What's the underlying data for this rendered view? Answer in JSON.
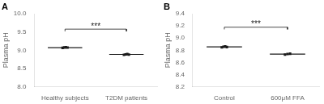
{
  "chart_data": [
    {
      "type": "scatter",
      "title": "A",
      "ylabel": "Plasma pH",
      "categories": [
        "Healthy subjects",
        "T2DM patients"
      ],
      "values": [
        [
          9.065,
          9.075,
          9.082,
          9.072
        ],
        [
          8.875,
          8.885,
          8.892,
          8.88
        ]
      ],
      "means": [
        9.07,
        8.885
      ],
      "color": "#1a1a1a",
      "marker": "square",
      "grid": false,
      "ylim": [
        8.0,
        10.0
      ],
      "yticks": [
        {
          "value": 8.0,
          "label": "8.0"
        },
        8.5,
        {
          "value": 9.0,
          "label": "9.0"
        },
        9.5,
        {
          "value": 10.0,
          "label": "10.0"
        }
      ],
      "annotations": [
        {
          "text": "***",
          "y": 9.58,
          "from": "Healthy subjects",
          "to": "T2DM patients"
        }
      ]
    },
    {
      "type": "scatter",
      "title": "B",
      "ylabel": "Plasma pH",
      "categories": [
        "Control",
        "600μM FFA"
      ],
      "values": [
        [
          8.848,
          8.858,
          8.862,
          8.852
        ],
        [
          8.728,
          8.738,
          8.742
        ]
      ],
      "means": [
        8.855,
        8.735
      ],
      "color": "#1a1a1a",
      "marker": "square",
      "grid": false,
      "ylim": [
        8.2,
        9.4
      ],
      "yticks": [
        8.2,
        8.4,
        8.6,
        8.8,
        {
          "value": 9.0,
          "label": "9.0"
        },
        9.2,
        9.4
      ],
      "annotations": [
        {
          "text": "***",
          "y": 9.18,
          "from": "Control",
          "to": "600μM FFA"
        }
      ]
    }
  ]
}
